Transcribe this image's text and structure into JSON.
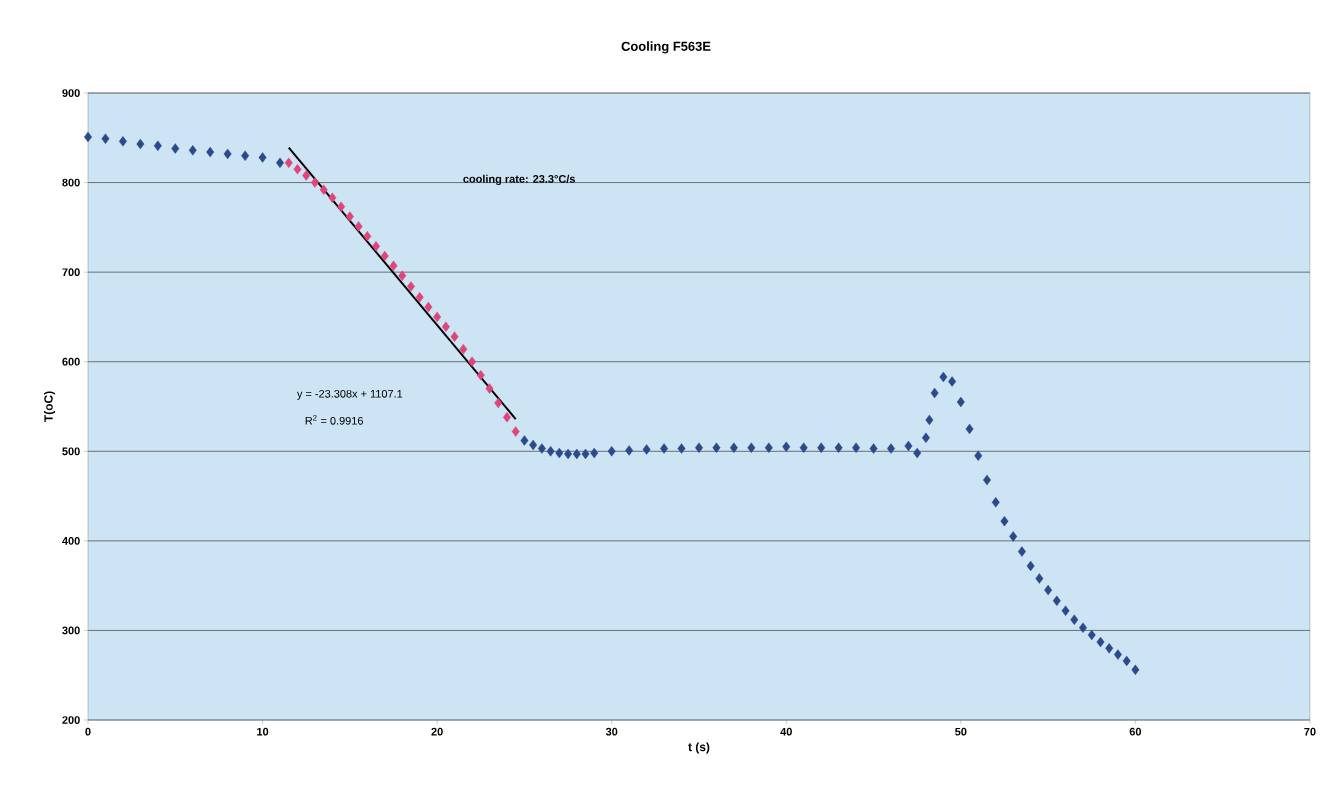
{
  "chart_data": {
    "type": "scatter",
    "title": "Cooling F563E",
    "xlabel": "t (s)",
    "ylabel": "T(oC)",
    "xlim": [
      0,
      70
    ],
    "ylim": [
      200,
      900
    ],
    "xticks": [
      0,
      10,
      20,
      30,
      40,
      50,
      60,
      70
    ],
    "yticks": [
      200,
      300,
      400,
      500,
      600,
      700,
      800,
      900
    ],
    "grid": "y",
    "marker": "diamond",
    "annotations": [
      "cooling rate: 23.3°C/s",
      "y = -23.308x + 1107.1",
      "R$^{2}$ = 0.9916"
    ],
    "series": [
      {
        "color": "#2b4a8c",
        "x": [
          0,
          1,
          2,
          3,
          4,
          5,
          6,
          7,
          8,
          9,
          10,
          11,
          25,
          25.5,
          26,
          26.5,
          27,
          27.5,
          28,
          28.5,
          29,
          30,
          31,
          32,
          33,
          34,
          35,
          36,
          37,
          38,
          39,
          40,
          41,
          42,
          43,
          44,
          45,
          46,
          47,
          47.5,
          48,
          48.2,
          48.5,
          49,
          49.5,
          50,
          50.5,
          51,
          51.5,
          52,
          52.5,
          53,
          53.5,
          54,
          54.5,
          55,
          55.5,
          56,
          56.5,
          57,
          57.5,
          58,
          58.5,
          59,
          59.5,
          60
        ],
        "values": [
          851,
          849,
          846,
          843,
          841,
          838,
          836,
          834,
          832,
          830,
          828,
          822,
          512,
          507,
          503,
          500,
          498,
          497,
          497,
          497,
          498,
          500,
          501,
          502,
          503,
          503,
          504,
          504,
          504,
          504,
          504,
          505,
          504,
          504,
          504,
          504,
          503,
          503,
          506,
          498,
          515,
          535,
          565,
          583,
          578,
          555,
          525,
          495,
          468,
          443,
          422,
          405,
          388,
          372,
          358,
          345,
          333,
          322,
          312,
          303,
          295,
          287,
          280,
          273,
          266,
          256
        ]
      },
      {
        "color": "#e0457a",
        "x": [
          11.5,
          12,
          12.5,
          13,
          13.5,
          14,
          14.5,
          15,
          15.5,
          16,
          16.5,
          17,
          17.5,
          18,
          18.5,
          19,
          19.5,
          20,
          20.5,
          21,
          21.5,
          22,
          22.5,
          23,
          23.5,
          24,
          24.5
        ],
        "values": [
          822,
          815,
          808,
          800,
          792,
          783,
          773,
          762,
          751,
          740,
          729,
          718,
          707,
          696,
          684,
          672,
          661,
          650,
          639,
          628,
          614,
          600,
          585,
          570,
          554,
          538,
          522
        ]
      },
      {
        "type": "line",
        "color": "#000000",
        "marker": "none",
        "x": [
          11.5,
          24.5
        ],
        "values": [
          839,
          536
        ]
      }
    ]
  }
}
